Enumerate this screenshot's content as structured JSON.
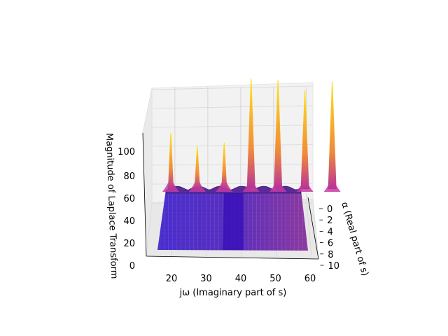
{
  "chart_data": {
    "type": "surface3d",
    "title": "",
    "xlabel": "jω (Imaginary part of s)",
    "ylabel": "α (Real part of s)",
    "zlabel": "Magnitude of Laplace Transform",
    "x_ticks": [
      "20",
      "30",
      "40",
      "50",
      "60"
    ],
    "y_ticks": [
      "0",
      "2",
      "4",
      "6",
      "8",
      "10"
    ],
    "z_ticks": [
      "0",
      "20",
      "40",
      "60",
      "80",
      "100"
    ],
    "xlim": [
      13,
      62
    ],
    "ylim": [
      0,
      10
    ],
    "zlim": [
      0,
      130
    ],
    "base_level": 60,
    "peaks": [
      {
        "x": 15.7,
        "z": 95
      },
      {
        "x": 21.8,
        "z": 87
      },
      {
        "x": 28.0,
        "z": 89
      },
      {
        "x": 34.2,
        "z": 128
      },
      {
        "x": 40.4,
        "z": 127
      },
      {
        "x": 46.6,
        "z": 121
      },
      {
        "x": 52.9,
        "z": 126
      }
    ],
    "colormap": "plasma",
    "colors": {
      "low": "#3b1fb0",
      "mid": "#8a2aa0",
      "high": "#ffe31a",
      "pane": "#f2f2f2"
    }
  }
}
